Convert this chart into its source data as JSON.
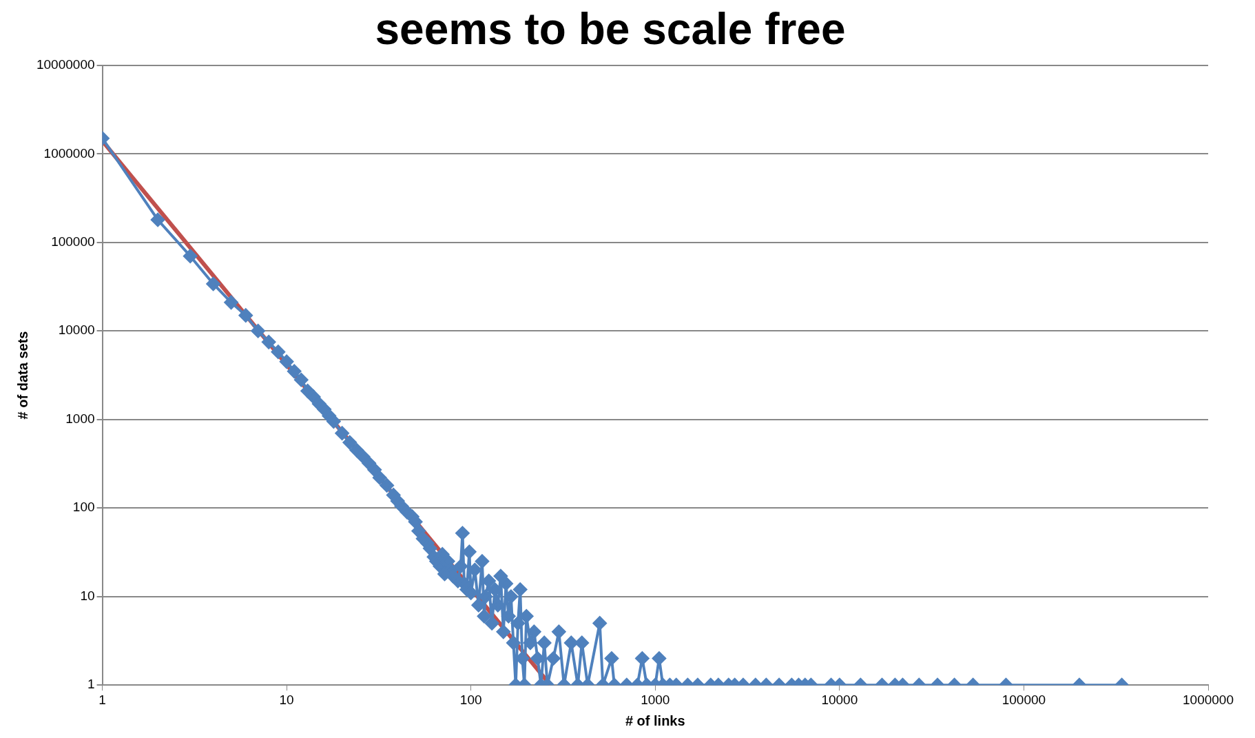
{
  "chart_data": {
    "type": "line",
    "title": "seems to be scale free",
    "xlabel": "# of links",
    "ylabel": "# of data sets",
    "log": "xy",
    "grid": "y",
    "legend": false,
    "marker": "diamond",
    "xlim": [
      1,
      1000000
    ],
    "ylim": [
      1,
      10000000
    ],
    "xticks": [
      1,
      10,
      100,
      1000,
      10000,
      100000,
      1000000
    ],
    "yticks": [
      1,
      10,
      100,
      1000,
      10000,
      100000,
      1000000,
      10000000
    ],
    "series": [
      {
        "color": "#4f81bd",
        "x": [
          1,
          2,
          3,
          4,
          5,
          6,
          7,
          8,
          9,
          10,
          11,
          12,
          13,
          14,
          15,
          16,
          17,
          18,
          20,
          22,
          24,
          26,
          28,
          30,
          32,
          35,
          38,
          40,
          42,
          45,
          48,
          50,
          52,
          55,
          58,
          60,
          63,
          65,
          68,
          70,
          72,
          75,
          78,
          80,
          85,
          88,
          90,
          92,
          95,
          98,
          100,
          105,
          110,
          115,
          118,
          120,
          125,
          130,
          135,
          140,
          145,
          150,
          155,
          160,
          165,
          170,
          175,
          180,
          185,
          190,
          195,
          200,
          210,
          220,
          230,
          240,
          250,
          260,
          280,
          300,
          320,
          350,
          380,
          400,
          430,
          500,
          520,
          580,
          600,
          700,
          800,
          850,
          900,
          1000,
          1050,
          1100,
          1200,
          1300,
          1500,
          1700,
          2000,
          2200,
          2500,
          2700,
          3000,
          3500,
          4000,
          4700,
          5500,
          6000,
          6500,
          7000,
          9000,
          10000,
          13000,
          17000,
          20000,
          22000,
          27000,
          34000,
          42000,
          53000,
          80000,
          200000,
          340000
        ],
        "values": [
          1500000,
          180000,
          70000,
          34000,
          21000,
          15000,
          10000,
          7500,
          5800,
          4500,
          3500,
          2800,
          2100,
          1800,
          1500,
          1300,
          1100,
          950,
          700,
          550,
          450,
          380,
          320,
          270,
          220,
          180,
          140,
          120,
          105,
          90,
          80,
          70,
          55,
          45,
          40,
          35,
          28,
          25,
          22,
          30,
          18,
          25,
          20,
          17,
          15,
          22,
          52,
          14,
          12,
          32,
          11,
          20,
          8,
          25,
          6,
          10,
          15,
          5,
          12,
          8,
          17,
          4,
          14,
          6,
          10,
          3,
          1,
          5,
          12,
          2,
          1,
          6,
          3,
          4,
          2,
          1,
          3,
          1,
          2,
          4,
          1,
          3,
          1,
          3,
          1,
          5,
          1,
          2,
          1,
          1,
          1,
          2,
          1,
          1,
          2,
          1,
          1,
          1,
          1,
          1,
          1,
          1,
          1,
          1,
          1,
          1,
          1,
          1,
          1,
          1,
          1,
          1,
          1,
          1,
          1,
          1,
          1,
          1,
          1,
          1,
          1,
          1,
          1,
          1,
          1
        ]
      },
      {
        "type": "line",
        "color": "#c0504d",
        "marker": "none",
        "x": [
          1,
          270
        ],
        "values": [
          1400000,
          1
        ]
      }
    ]
  }
}
